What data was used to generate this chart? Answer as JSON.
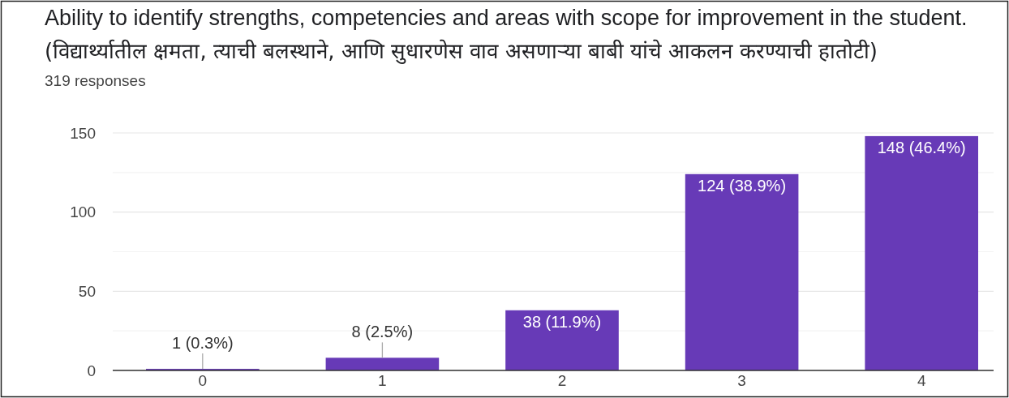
{
  "chart_data": {
    "type": "bar",
    "title": "Ability to identify strengths, competencies and areas with scope for improvement in the student.",
    "subtitle": "(विद्यार्थ्यातील क्षमता, त्याची बलस्थाने, आणि सुधारणेस वाव असणाऱ्या बाबी यांचे आकलन करण्याची हातोटी)",
    "annotations": [
      "319 responses"
    ],
    "categories": [
      "0",
      "1",
      "2",
      "3",
      "4"
    ],
    "values": [
      1,
      8,
      38,
      124,
      148
    ],
    "value_labels": [
      "1 (0.3%)",
      "8 (2.5%)",
      "38 (11.9%)",
      "124 (38.9%)",
      "148 (46.4%)"
    ],
    "color": "#673ab7",
    "ylim": [
      0,
      150
    ],
    "yticks": [
      0,
      {
        "value": 25,
        "label": null
      },
      50,
      {
        "value": 75,
        "label": null
      },
      100,
      {
        "value": 125,
        "label": null
      },
      150
    ],
    "grid": true
  }
}
